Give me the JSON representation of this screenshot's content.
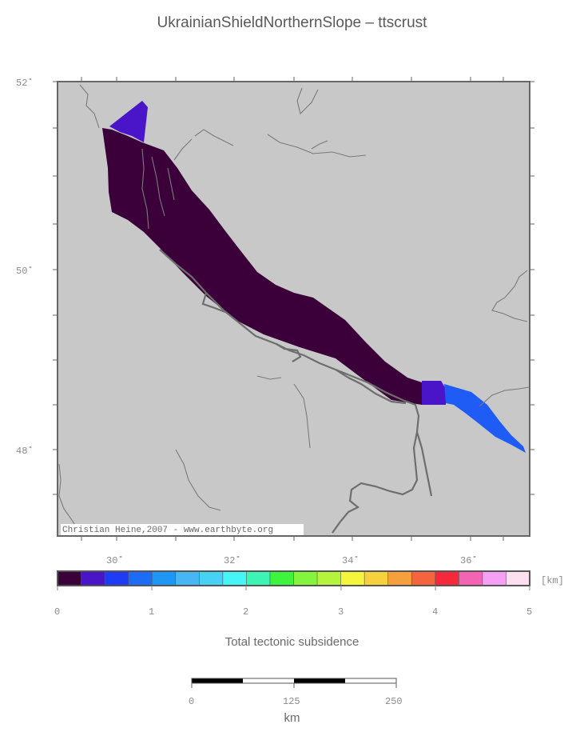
{
  "title": "UkrainianShieldNorthernSlope – ttscrust",
  "map": {
    "lat_labels": [
      "52˚",
      "50˚",
      "48˚"
    ],
    "lon_labels": [
      "30˚",
      "32˚",
      "34˚",
      "36˚"
    ],
    "credit": "Christian Heine,2007 - www.earthbyte.org",
    "region_colors": {
      "main": "#3b0039",
      "northern_tip": "#4a14c8",
      "eastern_purple": "#4a14c8",
      "eastern_blue": "#1e5cf5"
    }
  },
  "colorbar": {
    "unit_label": "[km]",
    "tick_labels": [
      "0",
      "1",
      "2",
      "3",
      "4",
      "5"
    ],
    "colors": [
      "#3b0039",
      "#4a14c8",
      "#1e3cf5",
      "#1e6cf5",
      "#1e96f5",
      "#46b6f5",
      "#46d2f5",
      "#46f5f5",
      "#3cf5b4",
      "#3cf53c",
      "#82f53c",
      "#b4f53c",
      "#f5f53c",
      "#f5d23c",
      "#f5a03c",
      "#f5643c",
      "#f5283c",
      "#f564b4",
      "#f5a0f5",
      "#fde0f0"
    ],
    "title": "Total tectonic subsidence"
  },
  "scalebar": {
    "tick_labels": [
      "0",
      "125",
      "250"
    ],
    "unit": "km"
  }
}
